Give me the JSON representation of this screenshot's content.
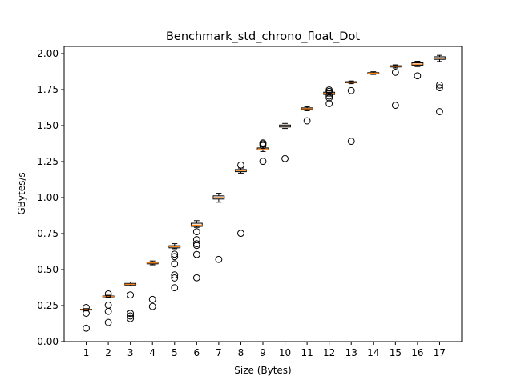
{
  "chart_data": {
    "type": "boxplot",
    "title": "Benchmark_std_chrono_float_Dot",
    "xlabel": "Size (Bytes)",
    "ylabel": "GBytes/s",
    "ylim": [
      0,
      2.05
    ],
    "yticks": [
      "0.00",
      "0.25",
      "0.50",
      "0.75",
      "1.00",
      "1.25",
      "1.50",
      "1.75",
      "2.00"
    ],
    "grid": false,
    "colors": {
      "box": "#000000",
      "median": "#ff7f0e",
      "outlier": "#000000"
    },
    "boxes": [
      {
        "label": "1",
        "whislo": 0.213,
        "q1": 0.219,
        "med": 0.222,
        "q3": 0.225,
        "whishi": 0.229,
        "fliers": [
          0.093,
          0.197,
          0.237
        ]
      },
      {
        "label": "2",
        "whislo": 0.306,
        "q1": 0.311,
        "med": 0.314,
        "q3": 0.317,
        "whishi": 0.322,
        "fliers": [
          0.133,
          0.21,
          0.253,
          0.331
        ]
      },
      {
        "label": "3",
        "whislo": 0.386,
        "q1": 0.393,
        "med": 0.398,
        "q3": 0.404,
        "whishi": 0.414,
        "fliers": [
          0.16,
          0.178,
          0.196,
          0.324
        ]
      },
      {
        "label": "4",
        "whislo": 0.533,
        "q1": 0.54,
        "med": 0.546,
        "q3": 0.551,
        "whishi": 0.56,
        "fliers": [
          0.244,
          0.293
        ]
      },
      {
        "label": "5",
        "whislo": 0.645,
        "q1": 0.651,
        "med": 0.659,
        "q3": 0.666,
        "whishi": 0.68,
        "fliers": [
          0.374,
          0.442,
          0.463,
          0.54,
          0.59,
          0.607
        ]
      },
      {
        "label": "6",
        "whislo": 0.793,
        "q1": 0.8,
        "med": 0.809,
        "q3": 0.822,
        "whishi": 0.84,
        "fliers": [
          0.443,
          0.605,
          0.668,
          0.68,
          0.708,
          0.763
        ]
      },
      {
        "label": "7",
        "whislo": 0.968,
        "q1": 0.99,
        "med": 1.0,
        "q3": 1.012,
        "whishi": 1.03,
        "fliers": [
          0.571
        ]
      },
      {
        "label": "8",
        "whislo": 1.17,
        "q1": 1.18,
        "med": 1.188,
        "q3": 1.195,
        "whishi": 1.205,
        "fliers": [
          0.752,
          1.226
        ]
      },
      {
        "label": "9",
        "whislo": 1.32,
        "q1": 1.331,
        "med": 1.338,
        "q3": 1.345,
        "whishi": 1.355,
        "fliers": [
          1.252,
          1.362,
          1.373,
          1.38
        ]
      },
      {
        "label": "10",
        "whislo": 1.48,
        "q1": 1.49,
        "med": 1.497,
        "q3": 1.504,
        "whishi": 1.515,
        "fliers": [
          1.271
        ]
      },
      {
        "label": "11",
        "whislo": 1.603,
        "q1": 1.611,
        "med": 1.617,
        "q3": 1.623,
        "whishi": 1.631,
        "fliers": [
          1.533
        ]
      },
      {
        "label": "12",
        "whislo": 1.705,
        "q1": 1.716,
        "med": 1.725,
        "q3": 1.732,
        "whishi": 1.742,
        "fliers": [
          1.653,
          1.692,
          1.705,
          1.738,
          1.748
        ]
      },
      {
        "label": "13",
        "whislo": 1.791,
        "q1": 1.797,
        "med": 1.801,
        "q3": 1.805,
        "whishi": 1.81,
        "fliers": [
          1.391,
          1.743
        ]
      },
      {
        "label": "14",
        "whislo": 1.855,
        "q1": 1.86,
        "med": 1.864,
        "q3": 1.868,
        "whishi": 1.874,
        "fliers": []
      },
      {
        "label": "15",
        "whislo": 1.9,
        "q1": 1.907,
        "med": 1.912,
        "q3": 1.916,
        "whishi": 1.922,
        "fliers": [
          1.641,
          1.87
        ]
      },
      {
        "label": "16",
        "whislo": 1.91,
        "q1": 1.92,
        "med": 1.927,
        "q3": 1.936,
        "whishi": 1.947,
        "fliers": [
          1.846
        ]
      },
      {
        "label": "17",
        "whislo": 1.945,
        "q1": 1.96,
        "med": 1.968,
        "q3": 1.978,
        "whishi": 1.988,
        "fliers": [
          1.597,
          1.763,
          1.782
        ]
      }
    ]
  }
}
